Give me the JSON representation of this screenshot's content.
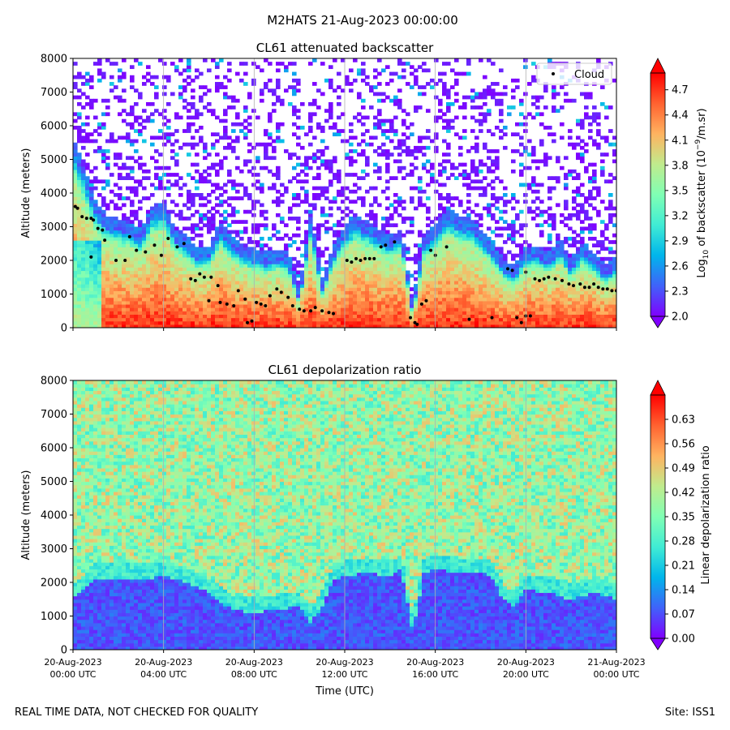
{
  "suptitle": "M2HATS 21-Aug-2023 00:00:00",
  "footer": {
    "left": "REAL TIME DATA, NOT CHECKED FOR QUALITY",
    "right": "Site: ISS1"
  },
  "xaxis": {
    "label": "Time (UTC)",
    "ticks": [
      {
        "hour": 0,
        "date": "20-Aug-2023",
        "time": "00:00 UTC"
      },
      {
        "hour": 4,
        "date": "20-Aug-2023",
        "time": "04:00 UTC"
      },
      {
        "hour": 8,
        "date": "20-Aug-2023",
        "time": "08:00 UTC"
      },
      {
        "hour": 12,
        "date": "20-Aug-2023",
        "time": "12:00 UTC"
      },
      {
        "hour": 16,
        "date": "20-Aug-2023",
        "time": "16:00 UTC"
      },
      {
        "hour": 20,
        "date": "20-Aug-2023",
        "time": "20:00 UTC"
      },
      {
        "hour": 24,
        "date": "21-Aug-2023",
        "time": "00:00 UTC"
      }
    ],
    "range_hours": [
      0,
      24
    ]
  },
  "colors": {
    "rainbow": [
      "#8000ff",
      "#4062fa",
      "#00b5eb",
      "#40ecd4",
      "#80ffb4",
      "#c0eb8d",
      "#ffb360",
      "#ff6230",
      "#ff0000"
    ],
    "grid": "#b0b0b0",
    "cloud_marker": "#000000"
  },
  "chart_data": [
    {
      "type": "heatmap",
      "title": "CL61 attenuated backscatter",
      "ylabel": "Altitude (meters)",
      "ylim": [
        0,
        8000
      ],
      "yticks": [
        0,
        1000,
        2000,
        3000,
        4000,
        5000,
        6000,
        7000,
        8000
      ],
      "colorbar": {
        "label": "Log10 of backscatter (10^-9/m.sr)",
        "label_parts": {
          "pre": "Log",
          "sub": "10",
          "mid": " of backscatter (10",
          "sup": "−9",
          "post": "/m.sr)"
        },
        "range": [
          2.0,
          4.9
        ],
        "ticks": [
          "2.0",
          "2.3",
          "2.6",
          "2.9",
          "3.2",
          "3.5",
          "3.8",
          "4.1",
          "4.4",
          "4.7"
        ]
      },
      "legend": {
        "label": "Cloud",
        "placement": "top-right"
      },
      "boundary_layer_top_m": [
        [
          0.0,
          5300
        ],
        [
          0.5,
          4400
        ],
        [
          1.0,
          3400
        ],
        [
          1.5,
          3000
        ],
        [
          2.0,
          2900
        ],
        [
          2.5,
          2800
        ],
        [
          3.0,
          2600
        ],
        [
          3.5,
          3300
        ],
        [
          4.0,
          3400
        ],
        [
          4.5,
          2600
        ],
        [
          5.0,
          2400
        ],
        [
          5.5,
          2000
        ],
        [
          6.0,
          2100
        ],
        [
          6.5,
          2800
        ],
        [
          7.0,
          2400
        ],
        [
          7.5,
          2100
        ],
        [
          8.0,
          2000
        ],
        [
          8.5,
          1900
        ],
        [
          9.0,
          2000
        ],
        [
          9.5,
          1900
        ],
        [
          10.0,
          800
        ],
        [
          10.5,
          3000
        ],
        [
          11.0,
          1100
        ],
        [
          11.5,
          2100
        ],
        [
          12.0,
          2700
        ],
        [
          12.5,
          3000
        ],
        [
          13.0,
          2800
        ],
        [
          13.5,
          2600
        ],
        [
          14.0,
          2400
        ],
        [
          14.5,
          2600
        ],
        [
          15.0,
          400
        ],
        [
          15.5,
          2400
        ],
        [
          16.0,
          2700
        ],
        [
          16.5,
          3200
        ],
        [
          17.0,
          3000
        ],
        [
          17.5,
          2900
        ],
        [
          18.0,
          2600
        ],
        [
          18.5,
          2200
        ],
        [
          19.0,
          1700
        ],
        [
          19.5,
          1500
        ],
        [
          20.0,
          2100
        ],
        [
          20.5,
          2100
        ],
        [
          21.0,
          1900
        ],
        [
          21.5,
          2300
        ],
        [
          22.0,
          1700
        ],
        [
          22.5,
          2200
        ],
        [
          23.0,
          1900
        ],
        [
          23.5,
          1500
        ],
        [
          24.0,
          1800
        ]
      ],
      "cloud_points": [
        [
          0.1,
          3600
        ],
        [
          0.2,
          3550
        ],
        [
          0.4,
          3300
        ],
        [
          0.6,
          3250
        ],
        [
          0.8,
          3250
        ],
        [
          0.9,
          3200
        ],
        [
          1.1,
          2950
        ],
        [
          1.3,
          2900
        ],
        [
          1.4,
          2600
        ],
        [
          0.8,
          2100
        ],
        [
          1.9,
          2000
        ],
        [
          2.3,
          2000
        ],
        [
          2.5,
          2700
        ],
        [
          2.8,
          2300
        ],
        [
          3.2,
          2250
        ],
        [
          3.6,
          2450
        ],
        [
          3.9,
          2150
        ],
        [
          4.2,
          2650
        ],
        [
          4.6,
          2400
        ],
        [
          4.9,
          2500
        ],
        [
          5.2,
          1450
        ],
        [
          5.4,
          1400
        ],
        [
          5.6,
          1600
        ],
        [
          5.8,
          1500
        ],
        [
          6.1,
          1500
        ],
        [
          6.0,
          800
        ],
        [
          6.4,
          1250
        ],
        [
          6.5,
          750
        ],
        [
          6.8,
          700
        ],
        [
          7.1,
          650
        ],
        [
          7.3,
          1100
        ],
        [
          7.6,
          850
        ],
        [
          7.7,
          150
        ],
        [
          7.9,
          200
        ],
        [
          8.1,
          750
        ],
        [
          8.3,
          700
        ],
        [
          8.5,
          650
        ],
        [
          8.7,
          950
        ],
        [
          9.0,
          1150
        ],
        [
          9.2,
          1050
        ],
        [
          9.5,
          900
        ],
        [
          9.7,
          650
        ],
        [
          10.0,
          550
        ],
        [
          10.2,
          500
        ],
        [
          10.5,
          500
        ],
        [
          10.7,
          600
        ],
        [
          11.0,
          500
        ],
        [
          11.3,
          450
        ],
        [
          11.5,
          420
        ],
        [
          12.1,
          2000
        ],
        [
          12.3,
          1950
        ],
        [
          12.5,
          2050
        ],
        [
          12.7,
          2000
        ],
        [
          12.9,
          2050
        ],
        [
          13.1,
          2050
        ],
        [
          13.3,
          2050
        ],
        [
          13.6,
          2400
        ],
        [
          13.8,
          2450
        ],
        [
          14.2,
          2550
        ],
        [
          14.9,
          300
        ],
        [
          15.1,
          150
        ],
        [
          15.2,
          100
        ],
        [
          15.4,
          700
        ],
        [
          15.6,
          800
        ],
        [
          15.8,
          2300
        ],
        [
          16.0,
          2150
        ],
        [
          16.5,
          2400
        ],
        [
          17.5,
          250
        ],
        [
          18.5,
          300
        ],
        [
          19.2,
          1750
        ],
        [
          19.4,
          1700
        ],
        [
          19.6,
          300
        ],
        [
          19.8,
          150
        ],
        [
          20.0,
          350
        ],
        [
          20.2,
          350
        ],
        [
          20.0,
          1650
        ],
        [
          20.4,
          1450
        ],
        [
          20.6,
          1400
        ],
        [
          20.8,
          1450
        ],
        [
          21.0,
          1500
        ],
        [
          21.3,
          1450
        ],
        [
          21.6,
          1400
        ],
        [
          21.9,
          1300
        ],
        [
          22.1,
          1250
        ],
        [
          22.4,
          1300
        ],
        [
          22.6,
          1200
        ],
        [
          22.8,
          1200
        ],
        [
          23.0,
          1300
        ],
        [
          23.2,
          1200
        ],
        [
          23.4,
          1150
        ],
        [
          23.6,
          1150
        ],
        [
          23.8,
          1100
        ],
        [
          24.0,
          1100
        ]
      ]
    },
    {
      "type": "heatmap",
      "title": "CL61 depolarization ratio",
      "ylabel": "Altitude (meters)",
      "ylim": [
        0,
        8000
      ],
      "yticks": [
        0,
        1000,
        2000,
        3000,
        4000,
        5000,
        6000,
        7000,
        8000
      ],
      "colorbar": {
        "label": "Linear depolarization ratio",
        "range": [
          0.0,
          0.7
        ],
        "ticks": [
          "0.00",
          "0.07",
          "0.14",
          "0.21",
          "0.28",
          "0.35",
          "0.42",
          "0.49",
          "0.56",
          "0.63"
        ]
      },
      "low_layer_top_m": [
        [
          0.0,
          1500
        ],
        [
          0.5,
          1800
        ],
        [
          1.0,
          2150
        ],
        [
          2.0,
          2150
        ],
        [
          3.0,
          2100
        ],
        [
          4.0,
          2200
        ],
        [
          4.5,
          2100
        ],
        [
          5.0,
          2000
        ],
        [
          6.0,
          1700
        ],
        [
          7.0,
          1200
        ],
        [
          8.0,
          1100
        ],
        [
          9.0,
          1200
        ],
        [
          10.0,
          1300
        ],
        [
          10.5,
          800
        ],
        [
          11.0,
          1300
        ],
        [
          11.5,
          2100
        ],
        [
          12.0,
          2200
        ],
        [
          13.0,
          2300
        ],
        [
          14.0,
          2200
        ],
        [
          14.5,
          2400
        ],
        [
          15.0,
          500
        ],
        [
          15.5,
          2300
        ],
        [
          16.0,
          2400
        ],
        [
          17.0,
          2300
        ],
        [
          18.0,
          2300
        ],
        [
          18.5,
          2200
        ],
        [
          19.0,
          1500
        ],
        [
          19.5,
          1300
        ],
        [
          20.0,
          1800
        ],
        [
          21.0,
          1700
        ],
        [
          22.0,
          1500
        ],
        [
          23.0,
          1700
        ],
        [
          24.0,
          1500
        ]
      ]
    }
  ]
}
